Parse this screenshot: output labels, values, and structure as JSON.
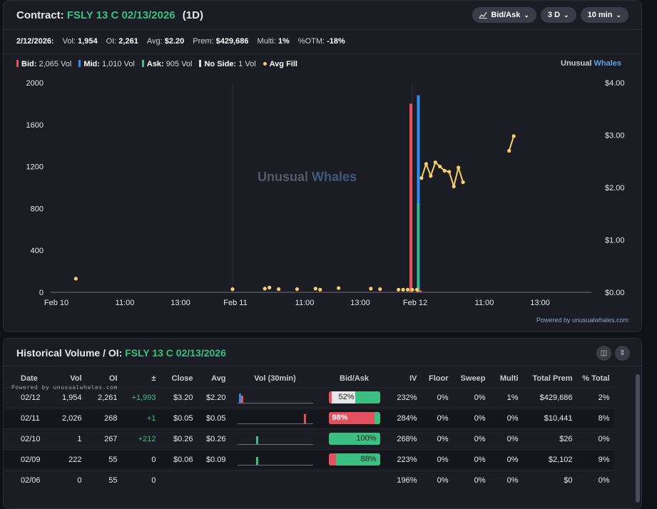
{
  "header": {
    "label": "Contract:",
    "contract": "FSLY 13 C 02/13/2026",
    "period": "(1D)",
    "buttons": [
      {
        "label": "Bid/Ask",
        "icon": "chart-line-icon"
      },
      {
        "label": "3 D"
      },
      {
        "label": "10 min"
      }
    ]
  },
  "stats": {
    "date": "2/12/2026:",
    "vol_label": "Vol:",
    "vol": "1,954",
    "oi_label": "OI:",
    "oi": "2,261",
    "avg_label": "Avg:",
    "avg": "$2.20",
    "prem_label": "Prem:",
    "prem": "$429,686",
    "multi_label": "Multi:",
    "multi": "1%",
    "otm_label": "%OTM:",
    "otm": "-18%"
  },
  "legend": [
    {
      "name": "Bid:",
      "value": "2,065 Vol",
      "color": "#e5505e",
      "kind": "bar"
    },
    {
      "name": "Mid:",
      "value": "1,010 Vol",
      "color": "#2f8cf0",
      "kind": "bar"
    },
    {
      "name": "Ask:",
      "value": "905 Vol",
      "color": "#3bbf82",
      "kind": "bar"
    },
    {
      "name": "No Side:",
      "value": "1 Vol",
      "color": "#d8d8d8",
      "kind": "bar"
    },
    {
      "name": "Avg Fill",
      "value": "",
      "color": "#f7cf6b",
      "kind": "dot"
    }
  ],
  "brand": {
    "a": "Unusual",
    "b": "Whales"
  },
  "watermark": {
    "a": "Unusual",
    "b": "Whales"
  },
  "powered": "Powered by unusualwhales.com",
  "chart_data": {
    "type": "bar",
    "x_ticks": [
      "Feb 10",
      "11:00",
      "13:00",
      "Feb 11",
      "11:00",
      "13:00",
      "Feb 12",
      "11:00",
      "13:00"
    ],
    "y_left_ticks": [
      "0",
      "400",
      "800",
      "1200",
      "1600",
      "2000"
    ],
    "y_left_range": [
      0,
      2000
    ],
    "y_right_ticks": [
      "$0.00",
      "$1.00",
      "$2.00",
      "$3.00",
      "$4.00"
    ],
    "y_right_range": [
      0,
      4
    ],
    "session_index": {
      "Feb 10": 0,
      "Feb 11": 1,
      "Feb 12": 2
    },
    "volume_bars": [
      {
        "x": "Feb 12 09:30",
        "bid": 1800,
        "mid": 0,
        "ask": 0
      },
      {
        "x": "Feb 12 09:40",
        "bid": 0,
        "mid": 1880,
        "ask": 850
      },
      {
        "x": "Feb 12 09:50",
        "bid": 20,
        "mid": 0,
        "ask": 0
      }
    ],
    "avg_fill": [
      {
        "x": "Feb 10 10:20",
        "y": 0.26
      },
      {
        "x": "Feb 11 09:30",
        "y": 0.06
      },
      {
        "x": "Feb 11 10:40",
        "y": 0.07
      },
      {
        "x": "Feb 11 10:50",
        "y": 0.09
      },
      {
        "x": "Feb 11 11:10",
        "y": 0.06
      },
      {
        "x": "Feb 11 11:50",
        "y": 0.06
      },
      {
        "x": "Feb 11 12:30",
        "y": 0.07
      },
      {
        "x": "Feb 11 12:40",
        "y": 0.05
      },
      {
        "x": "Feb 11 13:20",
        "y": 0.08
      },
      {
        "x": "Feb 11 14:30",
        "y": 0.07
      },
      {
        "x": "Feb 11 14:50",
        "y": 0.06
      },
      {
        "x": "Feb 11 15:30",
        "y": 0.05
      },
      {
        "x": "Feb 11 15:40",
        "y": 0.05
      },
      {
        "x": "Feb 11 15:50",
        "y": 0.05
      },
      {
        "x": "Feb 12 09:30",
        "y": 0.05
      },
      {
        "x": "Feb 12 09:40",
        "y": 0.05
      },
      {
        "x": "Feb 12 09:50",
        "y": 2.18
      },
      {
        "x": "Feb 12 10:00",
        "y": 2.45
      },
      {
        "x": "Feb 12 10:10",
        "y": 2.22
      },
      {
        "x": "Feb 12 10:20",
        "y": 2.48
      },
      {
        "x": "Feb 12 10:30",
        "y": 2.4
      },
      {
        "x": "Feb 12 10:40",
        "y": 2.32
      },
      {
        "x": "Feb 12 10:50",
        "y": 2.3
      },
      {
        "x": "Feb 12 11:00",
        "y": 2.02
      },
      {
        "x": "Feb 12 11:10",
        "y": 2.38
      },
      {
        "x": "Feb 12 11:20",
        "y": 2.1
      },
      {
        "x": "Feb 12 13:00",
        "y": 2.7
      },
      {
        "x": "Feb 12 13:10",
        "y": 2.98
      }
    ]
  },
  "history": {
    "title_label": "Historical Volume / OI:",
    "contract": "FSLY 13 C 02/13/2026",
    "powered": "Powered by unusualwhales.com",
    "columns": [
      "Date",
      "Vol",
      "OI",
      "±",
      "Close",
      "Avg",
      "Vol (30min)",
      "Bid/Ask",
      "IV",
      "Floor",
      "Sweep",
      "Multi",
      "Total Prem",
      "% Total"
    ],
    "rows": [
      {
        "date": "02/12",
        "vol": "1,954",
        "oi": "2,261",
        "chg": "+1,993",
        "close": "$3.20",
        "avg": "$2.20",
        "bid_pct": 0.06,
        "mid_pct": 0.46,
        "ba_label": "52%",
        "iv": "232%",
        "floor": "0%",
        "sweep": "0%",
        "multi": "1%",
        "prem": "$429,686",
        "total": "2%"
      },
      {
        "date": "02/11",
        "vol": "2,026",
        "oi": "268",
        "chg": "+1",
        "close": "$0.05",
        "avg": "$0.05",
        "bid_pct": 0.9,
        "mid_pct": 0,
        "ba_label": "98%",
        "iv": "284%",
        "floor": "0%",
        "sweep": "0%",
        "multi": "0%",
        "prem": "$10,441",
        "total": "8%"
      },
      {
        "date": "02/10",
        "vol": "1",
        "oi": "267",
        "chg": "+212",
        "close": "$0.26",
        "avg": "$0.26",
        "bid_pct": 0,
        "mid_pct": 0,
        "ba_label": "100%",
        "iv": "268%",
        "floor": "0%",
        "sweep": "0%",
        "multi": "0%",
        "prem": "$26",
        "total": "0%"
      },
      {
        "date": "02/09",
        "vol": "222",
        "oi": "55",
        "chg": "0",
        "close": "$0.06",
        "avg": "$0.09",
        "bid_pct": 0.14,
        "mid_pct": 0,
        "ba_label": "88%",
        "iv": "223%",
        "floor": "0%",
        "sweep": "0%",
        "multi": "0%",
        "prem": "$2,102",
        "total": "9%"
      },
      {
        "date": "02/06",
        "vol": "0",
        "oi": "55",
        "chg": "0",
        "close": "",
        "avg": "",
        "bid_pct": null,
        "mid_pct": null,
        "ba_label": "",
        "iv": "196%",
        "floor": "0%",
        "sweep": "0%",
        "multi": "0%",
        "prem": "$0",
        "total": "0%"
      }
    ]
  }
}
